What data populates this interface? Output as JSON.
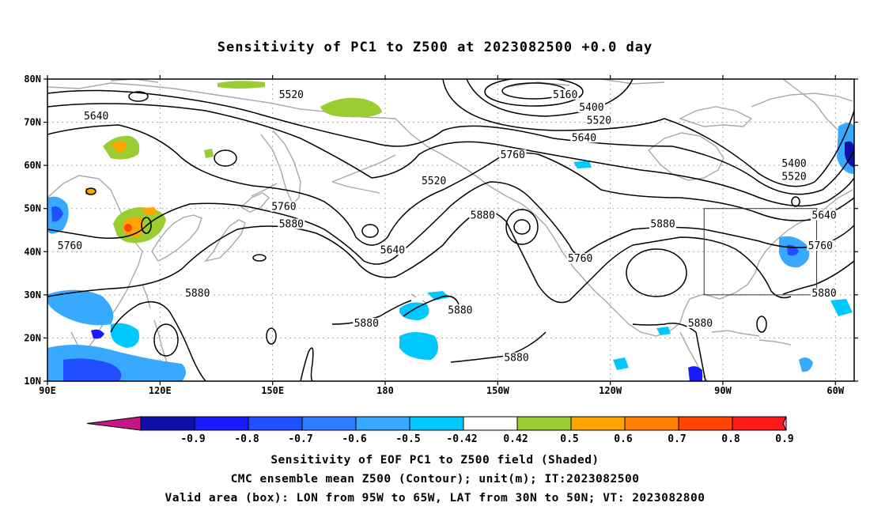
{
  "title": "Sensitivity of PC1 to Z500 at 2023082500 +0.0 day",
  "lat_labels": [
    "80N",
    "70N",
    "60N",
    "50N",
    "40N",
    "30N",
    "20N",
    "10N"
  ],
  "lon_labels": [
    "90E",
    "120E",
    "150E",
    "180",
    "150W",
    "120W",
    "90W",
    "60W"
  ],
  "contour_labels": [
    {
      "text": "5520",
      "lon": 155,
      "lat": 76
    },
    {
      "text": "5640",
      "lon": 103,
      "lat": 71
    },
    {
      "text": "5160",
      "lon": 228,
      "lat": 76
    },
    {
      "text": "5400",
      "lon": 235,
      "lat": 73
    },
    {
      "text": "5520",
      "lon": 237,
      "lat": 70
    },
    {
      "text": "5640",
      "lon": 233,
      "lat": 66
    },
    {
      "text": "5760",
      "lon": 214,
      "lat": 62
    },
    {
      "text": "5520",
      "lon": 193,
      "lat": 56
    },
    {
      "text": "5760",
      "lon": 153,
      "lat": 50
    },
    {
      "text": "5880",
      "lon": 155,
      "lat": 46
    },
    {
      "text": "5640",
      "lon": 182,
      "lat": 40
    },
    {
      "text": "5880",
      "lon": 206,
      "lat": 48
    },
    {
      "text": "5760",
      "lon": 232,
      "lat": 38
    },
    {
      "text": "5880",
      "lon": 254,
      "lat": 46
    },
    {
      "text": "5400",
      "lon": 289,
      "lat": 60
    },
    {
      "text": "5520",
      "lon": 289,
      "lat": 57
    },
    {
      "text": "5640",
      "lon": 297,
      "lat": 48
    },
    {
      "text": "5760",
      "lon": 296,
      "lat": 41
    },
    {
      "text": "5880",
      "lon": 297,
      "lat": 30
    },
    {
      "text": "5760",
      "lon": 96,
      "lat": 41
    },
    {
      "text": "5880",
      "lon": 130,
      "lat": 30
    },
    {
      "text": "5880",
      "lon": 175,
      "lat": 23
    },
    {
      "text": "5880",
      "lon": 200,
      "lat": 26
    },
    {
      "text": "5880",
      "lon": 215,
      "lat": 15
    },
    {
      "text": "5880",
      "lon": 264,
      "lat": 23
    }
  ],
  "colorbar": {
    "labels": [
      "-0.9",
      "-0.8",
      "-0.7",
      "-0.6",
      "-0.5",
      "-0.42",
      "0.42",
      "0.5",
      "0.6",
      "0.7",
      "0.8",
      "0.9"
    ],
    "colors": [
      "#1010a8",
      "#1a1aff",
      "#1f4fff",
      "#2b7cff",
      "#37a9ff",
      "#00c8ff",
      "#ffffff",
      "#9acd32",
      "#ffa500",
      "#ff7f00",
      "#ff4500",
      "#ff1a1a"
    ],
    "low_end_color": "#c71585",
    "high_end_color": "#ff9ec7"
  },
  "valid_box": {
    "lon_min": -95,
    "lon_max": -65,
    "lat_min": 30,
    "lat_max": 50
  },
  "caption": {
    "line1": "Sensitivity of EOF PC1 to Z500 field (Shaded)",
    "line2": "CMC ensemble mean Z500 (Contour); unit(m); IT:2023082500",
    "line3": "Valid area (box): LON from 95W to 65W, LAT from 30N to 50N; VT: 2023082800"
  }
}
